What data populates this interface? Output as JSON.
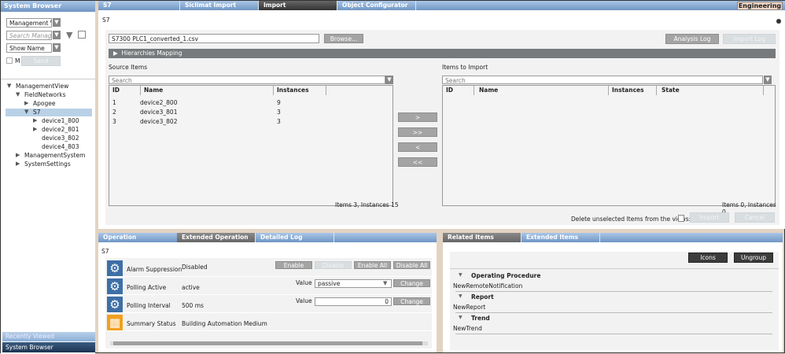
{
  "system_browser": {
    "title": "System Browser",
    "view_select": "Management Vie",
    "search_placeholder": "Search Management",
    "name_select": "Show Name",
    "checkbox_label": "M",
    "send": "Send",
    "tree": [
      {
        "label": "ManagementView",
        "level": 0,
        "arrow": "▼"
      },
      {
        "label": "FieldNetworks",
        "level": 1,
        "arrow": "▼"
      },
      {
        "label": "Apogee",
        "level": 2,
        "arrow": "▶"
      },
      {
        "label": "S7",
        "level": 2,
        "arrow": "▼",
        "selected": true
      },
      {
        "label": "device1_800",
        "level": 3,
        "arrow": "▶"
      },
      {
        "label": "device2_801",
        "level": 3,
        "arrow": "▶"
      },
      {
        "label": "device3_802",
        "level": 3,
        "arrow": ""
      },
      {
        "label": "device4_803",
        "level": 3,
        "arrow": ""
      },
      {
        "label": "ManagementSystem",
        "level": 1,
        "arrow": "▶"
      },
      {
        "label": "SystemSettings",
        "level": 1,
        "arrow": "▶"
      }
    ],
    "recently_viewed": "Recently Viewed",
    "system_browser_tab": "System Browser"
  },
  "top_tabs": [
    {
      "label": "S7"
    },
    {
      "label": "Siclimat Import"
    },
    {
      "label": "Import",
      "active": true
    },
    {
      "label": "Object Configurator"
    }
  ],
  "mode": "Engineering",
  "import": {
    "title": "S7",
    "file": "S7300 PLC1_converted_1.csv",
    "browse": "Browse...",
    "analysis_log": "Analysis Log",
    "import_log": "Import Log",
    "hierarchies": "Hierarchies Mapping",
    "source": {
      "label": "Source Items",
      "search": "Search",
      "cols": [
        "ID",
        "Name",
        "Instances"
      ],
      "rows": [
        [
          "1",
          "device2_800",
          "9"
        ],
        [
          "2",
          "device3_801",
          "3"
        ],
        [
          "3",
          "device3_802",
          "3"
        ]
      ],
      "summary": "Items 3, Instances 15"
    },
    "target": {
      "label": "Items to Import",
      "search": "Search",
      "cols": [
        "ID",
        "Name",
        "Instances",
        "State"
      ],
      "summary": "Items 0, Instances 0"
    },
    "move": [
      ">",
      ">>",
      "<",
      "<<"
    ],
    "delete_label": "Delete unselected Items from the views:",
    "import": "Import",
    "cancel": "Cancel"
  },
  "operation": {
    "tabs": [
      "Operation",
      "Extended Operation",
      "Detailed Log"
    ],
    "title": "S7",
    "rows": [
      {
        "label": "Alarm Suppression",
        "value": "Disabled",
        "icon": "gears-icon"
      },
      {
        "label": "Polling Active",
        "value": "active",
        "icon": "gear-icon"
      },
      {
        "label": "Polling Interval",
        "value": "500 ms",
        "icon": "gear-icon"
      },
      {
        "label": "Summary Status",
        "value": "Building Automation Medium",
        "icon": "building-icon"
      }
    ],
    "alarm_buttons": [
      "Enable",
      "Disable",
      "Enable All",
      "Disable All"
    ],
    "value_label": "Value",
    "polling_active_value": "passive",
    "polling_interval_value": "0",
    "change": "Change"
  },
  "related": {
    "tabs": [
      "Related Items",
      "Extended Items"
    ],
    "icons": "Icons",
    "ungroup": "Ungroup",
    "groups": [
      {
        "title": "Operating Procedure",
        "item": "NewRemoteNotification"
      },
      {
        "title": "Report",
        "item": "NewReport"
      },
      {
        "title": "Trend",
        "item": "NewTrend"
      }
    ]
  },
  "colors": {
    "header_blue": "#7fa3cf",
    "selected": "#b9d1e6",
    "accent_orange": "#f0a020"
  }
}
